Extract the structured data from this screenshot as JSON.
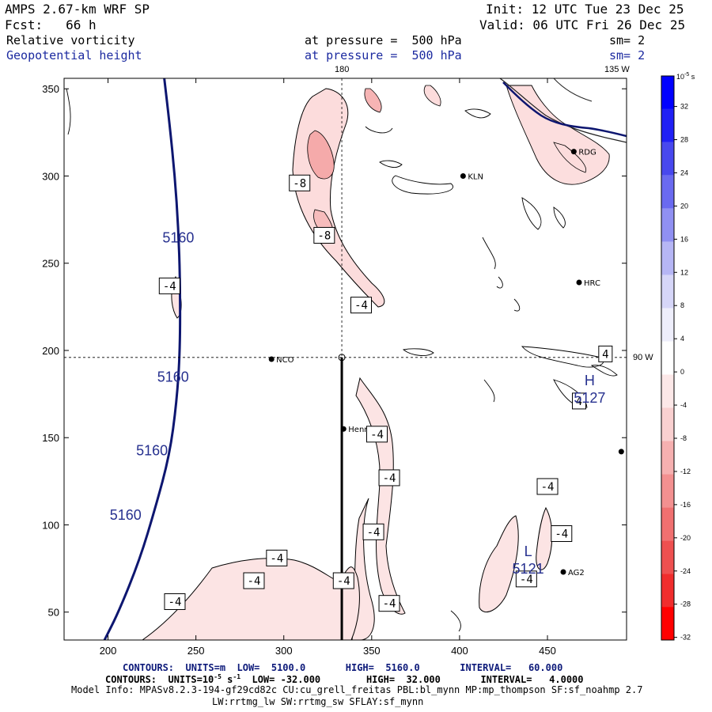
{
  "header": {
    "title": "AMPS 2.67-km WRF SP",
    "fcst": "Fcst:   66 h",
    "init": "Init: 12 UTC Tue 23 Dec 25",
    "valid": "Valid: 06 UTC Fri 26 Dec 25",
    "field1": "Relative vorticity",
    "field2": "Geopotential height",
    "level1": "at pressure =  500 hPa",
    "level2": "at pressure =  500 hPa",
    "sm1": "sm= 2",
    "sm2": "sm= 2"
  },
  "footer": {
    "contours1": "CONTOURS:  UNITS=m  LOW=  5100.0       HIGH=  5160.0       INTERVAL=   60.000",
    "contours2_a": "CONTOURS:  UNITS=10",
    "contours2_exp1": "-5",
    "contours2_b": " s",
    "contours2_exp2": "-1",
    "contours2_c": "  LOW= -32.000        HIGH=  32.000       INTERVAL=   4.0000",
    "model_info": "Model Info: MPASv8.2.3-194-gf29cd82c CU:cu_grell_freitas PBL:bl_mynn MP:mp_thompson SF:sf_noahmp 2.7",
    "model_info2": "LW:rrtmg_lw SW:rrtmg_sw SFLAY:sf_mynn"
  },
  "map_labels": {
    "top_180": "180",
    "top_135w": "135 W",
    "right_90w": "90 W"
  },
  "stations": [
    {
      "name": "NCO",
      "x": 293,
      "y": 195
    },
    {
      "name": "Henry",
      "x": 334,
      "y": 155
    },
    {
      "name": "KLN",
      "x": 402,
      "y": 300
    },
    {
      "name": "HRC",
      "x": 468,
      "y": 239
    },
    {
      "name": "RDG",
      "x": 465,
      "y": 314
    },
    {
      "name": "AG2",
      "x": 459,
      "y": 73
    },
    {
      "name": "",
      "x": 492,
      "y": 142
    }
  ],
  "colorbar": {
    "unit_label": "10",
    "unit_exp": "-5",
    "unit_suffix": " s",
    "ticks": [
      "32",
      "28",
      "24",
      "20",
      "16",
      "12",
      "8",
      "4",
      "0",
      "-4",
      "-8",
      "-12",
      "-16",
      "-20",
      "-24",
      "-28",
      "-32"
    ],
    "colors": [
      "#0000ff",
      "#2020f5",
      "#4848ee",
      "#6a6af0",
      "#9090f2",
      "#b6b6f5",
      "#d6d6f8",
      "#eeeefb",
      "#ffffff",
      "#fce8e8",
      "#f9d0d0",
      "#f6b0b0",
      "#f39090",
      "#f07070",
      "#ee5050",
      "#f02d2d",
      "#ff0000"
    ]
  },
  "chart_data": {
    "type": "contour-map",
    "xlabel": "",
    "ylabel": "",
    "xlim": [
      175,
      495
    ],
    "ylim": [
      34,
      356
    ],
    "xticks": [
      200,
      250,
      300,
      350,
      400,
      450
    ],
    "yticks": [
      50,
      100,
      150,
      200,
      250,
      300,
      350
    ],
    "crosshair": {
      "x": 333,
      "y": 196
    },
    "cross_section_line": {
      "x": 333,
      "y_from": 196,
      "y_to": 34
    },
    "geopotential_contour": {
      "value": 5160,
      "points": [
        [
          232,
          356
        ],
        [
          235,
          330
        ],
        [
          238,
          300
        ],
        [
          240,
          270
        ],
        [
          241,
          240
        ],
        [
          241,
          200
        ],
        [
          239,
          170
        ],
        [
          235,
          140
        ],
        [
          227,
          110
        ],
        [
          218,
          80
        ],
        [
          206,
          50
        ],
        [
          198,
          34
        ]
      ],
      "labels": [
        {
          "text": "5160",
          "x": 240,
          "y": 262
        },
        {
          "text": "5160",
          "x": 237,
          "y": 182
        },
        {
          "text": "5160",
          "x": 225,
          "y": 140
        },
        {
          "text": "5160",
          "x": 210,
          "y": 103
        }
      ]
    },
    "highs_lows": [
      {
        "symbol": "H",
        "value": "5127",
        "x": 474,
        "y": 180
      },
      {
        "symbol": "L",
        "value": "5121",
        "x": 439,
        "y": 82
      }
    ],
    "vorticity_labels": [
      {
        "text": "-8",
        "x": 309,
        "y": 296
      },
      {
        "text": "-8",
        "x": 323,
        "y": 266
      },
      {
        "text": "-4",
        "x": 235,
        "y": 237
      },
      {
        "text": "-4",
        "x": 344,
        "y": 226
      },
      {
        "text": "4",
        "x": 483,
        "y": 198
      },
      {
        "text": "4",
        "x": 468,
        "y": 171
      },
      {
        "text": "-4",
        "x": 353,
        "y": 152
      },
      {
        "text": "-4",
        "x": 360,
        "y": 127
      },
      {
        "text": "-4",
        "x": 450,
        "y": 122
      },
      {
        "text": "-4",
        "x": 351,
        "y": 96
      },
      {
        "text": "-4",
        "x": 458,
        "y": 95
      },
      {
        "text": "-4",
        "x": 296,
        "y": 81
      },
      {
        "text": "-4",
        "x": 283,
        "y": 68
      },
      {
        "text": "-4",
        "x": 334,
        "y": 68
      },
      {
        "text": "-4",
        "x": 438,
        "y": 69
      },
      {
        "text": "-4",
        "x": 238,
        "y": 56
      },
      {
        "text": "-4",
        "x": 360,
        "y": 55
      }
    ]
  }
}
